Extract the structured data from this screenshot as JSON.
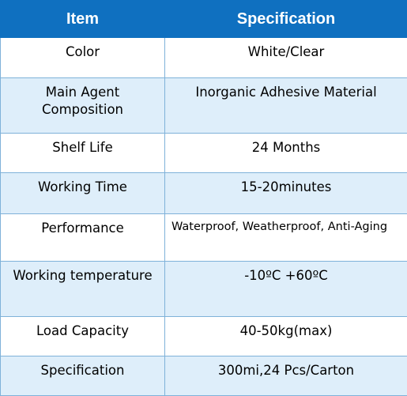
{
  "table": {
    "headers": {
      "item": "Item",
      "specification": "Specification"
    },
    "rows": [
      {
        "item": "Color",
        "value": "White/Clear"
      },
      {
        "item_line1": "Main Agent",
        "item_line2": "Composition",
        "value": "Inorganic Adhesive Material"
      },
      {
        "item": "Shelf Life",
        "value": "24 Months"
      },
      {
        "item": "Working Time",
        "value": "15-20minutes"
      },
      {
        "item": "Performance",
        "value": "Waterproof, Weatherproof, Anti-Aging"
      },
      {
        "item": "Working temperature",
        "value": "-10ºC +60ºC"
      },
      {
        "item": "Load Capacity",
        "value": "40-50kg(max)"
      },
      {
        "item": "Specification",
        "value": "300mi,24 Pcs/Carton"
      }
    ]
  },
  "colors": {
    "header_bg": "#0f70c0",
    "header_text": "#ffffff",
    "row_alt_bg": "#deeefa",
    "border": "#7fb2d9"
  }
}
